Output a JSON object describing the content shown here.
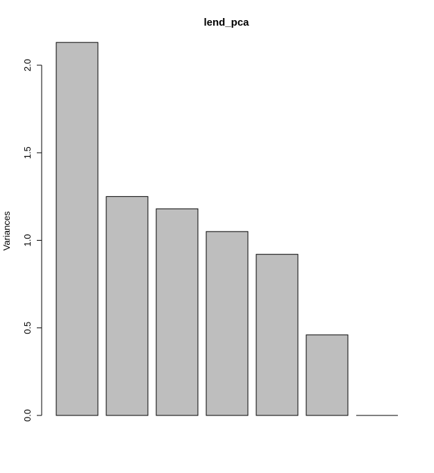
{
  "chart_data": {
    "type": "bar",
    "title": "lend_pca",
    "xlabel": "",
    "ylabel": "Variances",
    "ylim": [
      0,
      2.2
    ],
    "yticks": [
      "0.0",
      "0.5",
      "1.0",
      "1.5",
      "2.0"
    ],
    "bar_fill": "#bebebe",
    "bar_stroke": "#000000",
    "grid": false,
    "values": [
      2.13,
      1.25,
      1.18,
      1.05,
      0.92,
      0.46,
      0.0
    ]
  }
}
